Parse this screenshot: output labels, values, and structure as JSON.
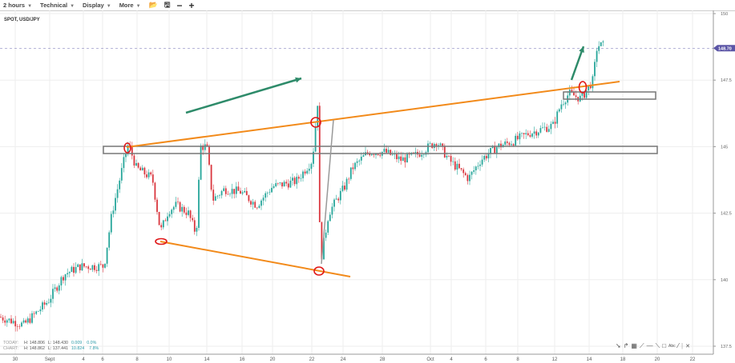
{
  "toolbar": {
    "interval": "2 hours",
    "technical": "Technical",
    "display": "Display",
    "more": "More",
    "icons": [
      "folder-open-icon",
      "save-icon",
      "zoom-out-icon",
      "zoom-in-icon"
    ]
  },
  "symbol": "SPOT, USD/JPY",
  "stats": {
    "today": {
      "label": "TODAY:",
      "high": "H: 148.806",
      "low": "L: 148.430",
      "change": "0.009",
      "pct": "0.0%"
    },
    "chart": {
      "label": "CHART:",
      "high": "H: 148.862",
      "low": "L: 137.441",
      "change": "10.824",
      "pct": "7.8%"
    }
  },
  "colors": {
    "up": "#26a69a",
    "down": "#d9363e",
    "trendline": "#f28a1a",
    "arrow": "#2e8b6a",
    "circle": "#e0191a",
    "price_label": "#5b55a6"
  },
  "chart_data": {
    "type": "candlestick",
    "title": "SPOT, USD/JPY",
    "current_price": "148.70",
    "ylim": [
      137.5,
      150
    ],
    "y_ticks": [
      "150",
      "147.5",
      "145",
      "142.5",
      "140",
      "137.5"
    ],
    "x_ticks": [
      "30",
      "Sept",
      "4",
      "6",
      "8",
      "10",
      "14",
      "16",
      "20",
      "22",
      "24",
      "28",
      "Oct",
      "4",
      "6",
      "8",
      "12",
      "14",
      "18",
      "20",
      "22"
    ],
    "grid": true,
    "approx_close_path": [
      [
        "Aug 29 02:00",
        138.6
      ],
      [
        "Aug 30 12:00",
        138.3
      ],
      [
        "Aug 31 22:00",
        139.2
      ],
      [
        "Sep 2 07:00",
        140.2
      ],
      [
        "Sep 3 17:00",
        140.5
      ],
      [
        "Sep 6 02:00",
        140.5
      ],
      [
        "Sep 6 13:00",
        142.5
      ],
      [
        "Sep 7 06:00",
        144.5
      ],
      [
        "Sep 7 12:00",
        145.1
      ],
      [
        "Sep 7 23:00",
        144.2
      ],
      [
        "Sep 8 23:00",
        143.8
      ],
      [
        "Sep 9 11:00",
        141.8
      ],
      [
        "Sep 9 23:00",
        142.6
      ],
      [
        "Sep 10 18:00",
        142.8
      ],
      [
        "Sep 12 01:00",
        142.5
      ],
      [
        "Sep 12 21:00",
        141.7
      ],
      [
        "Sep 13 08:00",
        145.0
      ],
      [
        "Sep 14 00:00",
        145.0
      ],
      [
        "Sep 14 08:00",
        143.0
      ],
      [
        "Sep 15 00:00",
        143.4
      ],
      [
        "Sep 15 22:00",
        143.3
      ],
      [
        "Sep 17 22:00",
        142.8
      ],
      [
        "Sep 20 00:00",
        143.5
      ],
      [
        "Sep 21 05:00",
        143.7
      ],
      [
        "Sep 22 01:00",
        144.5
      ],
      [
        "Sep 22 09:00",
        146.7
      ],
      [
        "Sep 22 13:00",
        140.6
      ],
      [
        "Sep 23 02:00",
        142.5
      ],
      [
        "Sep 23 14:00",
        143.0
      ],
      [
        "Sep 24 04:00",
        143.5
      ],
      [
        "Sep 24 23:00",
        144.2
      ],
      [
        "Sep 26 14:00",
        144.8
      ],
      [
        "Sep 28 04:00",
        144.8
      ],
      [
        "Sep 29 04:00",
        144.5
      ],
      [
        "Sep 30 04:00",
        144.7
      ],
      [
        "Oct 1 22:00",
        145.2
      ],
      [
        "Oct 3 16:00",
        144.5
      ],
      [
        "Oct 5 00:00",
        143.8
      ],
      [
        "Oct 5 17:00",
        144.5
      ],
      [
        "Oct 6 17:00",
        145.0
      ],
      [
        "Oct 7 17:00",
        145.2
      ],
      [
        "Oct 9 05:00",
        145.5
      ],
      [
        "Oct 11 20:00",
        145.8
      ],
      [
        "Oct 12 09:00",
        146.6
      ],
      [
        "Oct 12 20:00",
        147.0
      ],
      [
        "Oct 13 13:00",
        146.8
      ],
      [
        "Oct 14 11:00",
        147.5
      ],
      [
        "Oct 14 23:00",
        148.8
      ],
      [
        "Oct 15 16:00",
        148.8
      ]
    ]
  },
  "drawing_tools": [
    "pointer-icon",
    "curve-icon",
    "grid-icon",
    "fib-icon",
    "horizontal-line-icon",
    "ray-icon",
    "rectangle-icon",
    "text-icon",
    "line-icon",
    "close-icon"
  ],
  "drawing_text_label": "Abc"
}
